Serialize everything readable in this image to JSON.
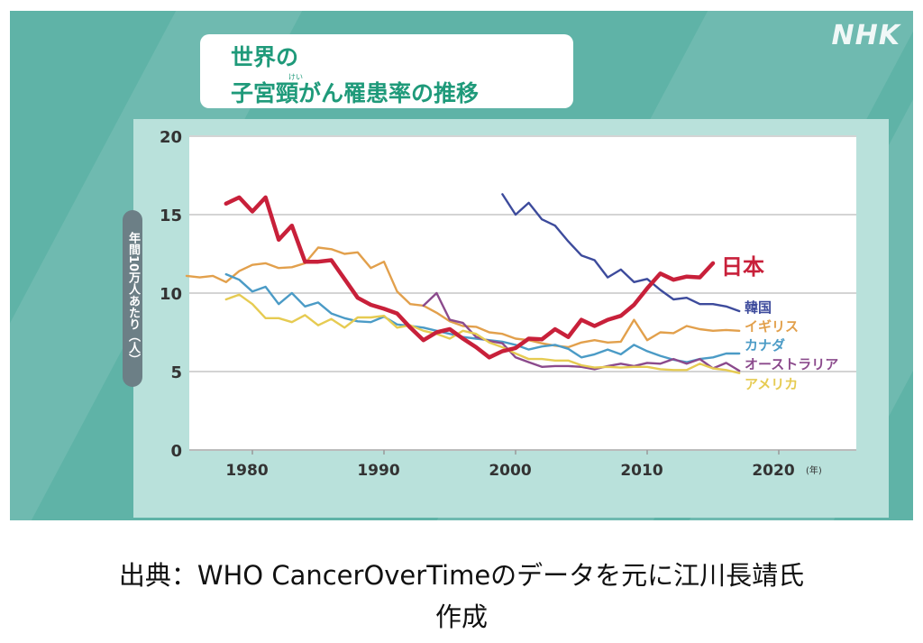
{
  "logo": "NHK",
  "chart_data": {
    "type": "line",
    "title_line1": "世界の",
    "title_line2": "子宮頸がん罹患率の推移",
    "title_ruby": "けい",
    "ylabel": "年間10万人あたり（人）",
    "xunit": "(年)",
    "xlim": [
      1975,
      2026
    ],
    "ylim": [
      0,
      20
    ],
    "xticks": [
      1980,
      1990,
      2000,
      2010,
      2020
    ],
    "yticks": [
      0,
      5,
      10,
      15,
      20
    ],
    "grid": "horizontal",
    "legend": "labels at line ends",
    "series": [
      {
        "name": "日本",
        "color": "#c8203a",
        "start": 1978,
        "values": [
          15.7,
          16.1,
          15.2,
          16.1,
          13.4,
          14.3,
          12.0,
          12.0,
          12.1,
          10.9,
          9.7,
          9.25,
          9.0,
          8.7,
          7.8,
          7.0,
          7.5,
          7.7,
          7.1,
          6.55,
          5.9,
          6.3,
          6.5,
          7.1,
          7.05,
          7.7,
          7.2,
          8.3,
          7.9,
          8.3,
          8.55,
          9.25,
          10.3,
          11.25,
          10.85,
          11.05,
          11.0,
          11.9
        ]
      },
      {
        "name": "韓国",
        "color": "#3d4b9c",
        "start": 1999,
        "values": [
          16.3,
          15.0,
          15.75,
          14.7,
          14.3,
          13.3,
          12.4,
          12.1,
          11.0,
          11.5,
          10.7,
          10.9,
          10.2,
          9.6,
          9.7,
          9.3,
          9.3,
          9.15,
          8.85
        ]
      },
      {
        "name": "イギリス",
        "color": "#e2a04c",
        "start": 1975,
        "values": [
          11.1,
          11.0,
          11.1,
          10.7,
          11.4,
          11.8,
          11.9,
          11.6,
          11.65,
          11.9,
          12.9,
          12.8,
          12.5,
          12.6,
          11.6,
          12.0,
          10.1,
          9.3,
          9.2,
          8.75,
          8.2,
          7.9,
          7.85,
          7.5,
          7.4,
          7.1,
          7.0,
          6.8,
          6.65,
          6.55,
          6.85,
          7.0,
          6.85,
          6.9,
          8.3,
          7.0,
          7.5,
          7.45,
          7.9,
          7.7,
          7.6,
          7.65,
          7.6
        ]
      },
      {
        "name": "カナダ",
        "color": "#4b9bc6",
        "start": 1978,
        "values": [
          11.2,
          10.85,
          10.1,
          10.4,
          9.3,
          10.0,
          9.15,
          9.4,
          8.7,
          8.4,
          8.2,
          8.15,
          8.5,
          8.0,
          7.9,
          7.8,
          7.6,
          7.4,
          7.2,
          7.1,
          7.0,
          6.9,
          6.7,
          6.4,
          6.6,
          6.7,
          6.45,
          5.9,
          6.1,
          6.4,
          6.1,
          6.7,
          6.3,
          6.0,
          5.75,
          5.6,
          5.8,
          5.9,
          6.15,
          6.15
        ]
      },
      {
        "name": "オーストラリア",
        "color": "#8b4a8c",
        "start": 1993,
        "values": [
          9.2,
          10.0,
          8.3,
          8.1,
          7.2,
          6.95,
          6.8,
          5.9,
          5.6,
          5.3,
          5.35,
          5.35,
          5.3,
          5.15,
          5.35,
          5.5,
          5.35,
          5.55,
          5.5,
          5.8,
          5.5,
          5.8,
          5.2,
          5.55,
          5.05
        ]
      },
      {
        "name": "アメリカ",
        "color": "#e6cb52",
        "start": 1978,
        "values": [
          9.6,
          9.9,
          9.3,
          8.4,
          8.4,
          8.15,
          8.6,
          7.95,
          8.35,
          7.8,
          8.45,
          8.45,
          8.55,
          7.8,
          7.95,
          7.6,
          7.4,
          7.1,
          7.6,
          7.4,
          6.85,
          6.55,
          6.15,
          5.8,
          5.8,
          5.7,
          5.7,
          5.4,
          5.25,
          5.3,
          5.25,
          5.3,
          5.3,
          5.15,
          5.1,
          5.1,
          5.5,
          5.2,
          5.1,
          4.9
        ]
      }
    ]
  },
  "caption": {
    "line1": "出典：WHO CancerOverTimeのデータを元に江川長靖氏",
    "line2": "作成"
  }
}
